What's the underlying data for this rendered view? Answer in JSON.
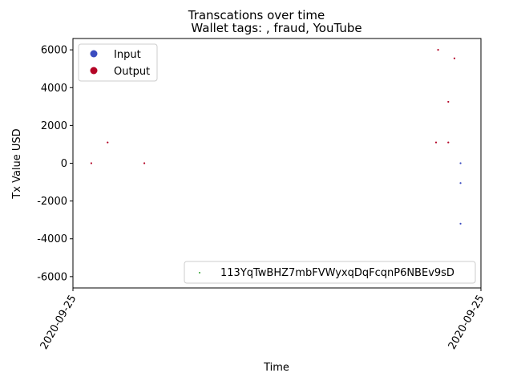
{
  "chart_data": {
    "type": "scatter",
    "title": "Transcations over time",
    "subtitle": "Wallet tags: , fraud, YouTube",
    "xlabel": "Time",
    "ylabel": "Tx Value USD",
    "x_tick_labels": [
      "2020-09-25",
      "2020-09-25"
    ],
    "y_ticks": [
      -6000,
      -4000,
      -2000,
      0,
      2000,
      4000,
      6000
    ],
    "ylim": [
      -6600,
      6600
    ],
    "grid": false,
    "legend_position": "upper left",
    "legend2_position": "lower right",
    "legend": [
      {
        "label": "Input",
        "color": "#3b4cc0"
      },
      {
        "label": "Output",
        "color": "#b40426"
      }
    ],
    "wallet_legend": {
      "label": "113YqTwBHZ7mbFVWyxqDqFcqnP6NBEv9sD",
      "color": "#2ca02c"
    },
    "series": [
      {
        "name": "Output",
        "color": "#b40426",
        "points": [
          {
            "x": 0.045,
            "y": 0
          },
          {
            "x": 0.085,
            "y": 1100
          },
          {
            "x": 0.175,
            "y": 0
          },
          {
            "x": 0.89,
            "y": 1100
          },
          {
            "x": 0.895,
            "y": 6000
          },
          {
            "x": 0.92,
            "y": 3250
          },
          {
            "x": 0.92,
            "y": 1100
          },
          {
            "x": 0.935,
            "y": 5550
          }
        ]
      },
      {
        "name": "Input",
        "color": "#3b4cc0",
        "points": [
          {
            "x": 0.95,
            "y": 0
          },
          {
            "x": 0.95,
            "y": -1050
          },
          {
            "x": 0.95,
            "y": -3200
          }
        ]
      }
    ]
  }
}
